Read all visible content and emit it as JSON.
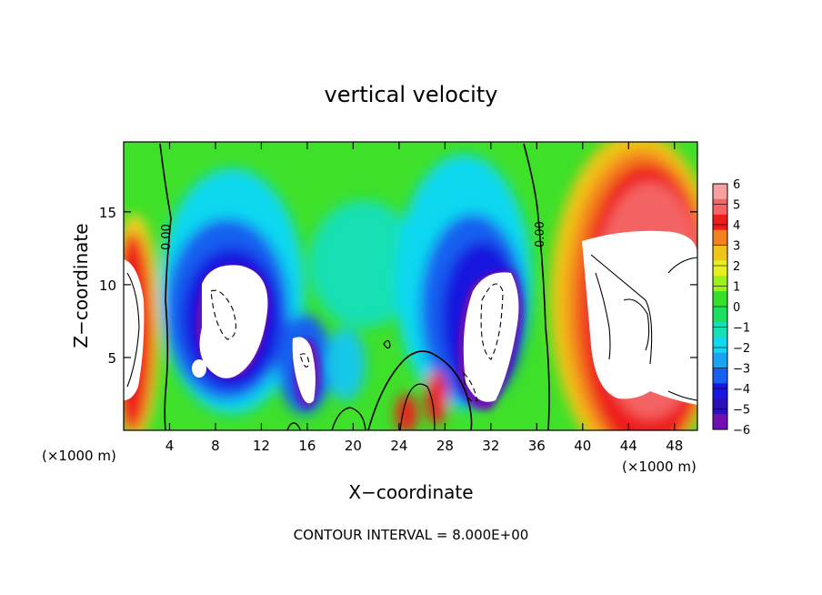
{
  "chart_data": {
    "type": "heatmap",
    "title": "vertical velocity",
    "xlabel": "X−coordinate",
    "ylabel": "Z−coordinate",
    "x_unit_left": "(×1000 m)",
    "x_unit_right": "(×1000 m)",
    "footer": "CONTOUR INTERVAL = 8.000E+00",
    "xlim": [
      0,
      50
    ],
    "ylim": [
      0,
      19.8
    ],
    "x_ticks": [
      4,
      8,
      12,
      16,
      20,
      24,
      28,
      32,
      36,
      40,
      44,
      48
    ],
    "y_ticks": [
      5,
      10,
      15
    ],
    "x_tick_labels": [
      "4",
      "8",
      "12",
      "16",
      "20",
      "24",
      "28",
      "32",
      "36",
      "40",
      "44",
      "48"
    ],
    "y_tick_labels": [
      "5",
      "10",
      "15"
    ],
    "colorbar": {
      "min": -6,
      "max": 6,
      "labels": [
        "6",
        "5",
        "4",
        "3",
        "2",
        "1",
        "0",
        "−1",
        "−2",
        "−3",
        "−4",
        "−5",
        "−6"
      ],
      "colors": [
        "#f7a0a0",
        "#f46464",
        "#ee1c1c",
        "#f4801e",
        "#f0c418",
        "#e8f020",
        "#9ef018",
        "#36e02a",
        "#1ae060",
        "#14e0b4",
        "#10d8f0",
        "#18a4f0",
        "#1860f0",
        "#1818e0",
        "#2c10b8",
        "#7010b4"
      ]
    },
    "contour_labels": [
      "0.00",
      "0.00"
    ],
    "features": [
      {
        "kind": "updraft",
        "x": [
          0,
          4
        ],
        "z": [
          0,
          13.5
        ],
        "peak": "white (>6)"
      },
      {
        "kind": "downdraft",
        "x": [
          4,
          13
        ],
        "z": [
          2,
          16
        ],
        "peak": "white (<-6)"
      },
      {
        "kind": "downdraft",
        "x": [
          13,
          18
        ],
        "z": [
          1,
          7
        ],
        "peak": "white (<-6)"
      },
      {
        "kind": "updraft",
        "x": [
          24,
          29
        ],
        "z": [
          0,
          3
        ],
        "peak": "red"
      },
      {
        "kind": "downdraft",
        "x": [
          29,
          37
        ],
        "z": [
          1,
          15
        ],
        "peak": "white (<-6)"
      },
      {
        "kind": "updraft",
        "x": [
          37,
          50
        ],
        "z": [
          0,
          19
        ],
        "peak": "white (>6)"
      }
    ]
  }
}
